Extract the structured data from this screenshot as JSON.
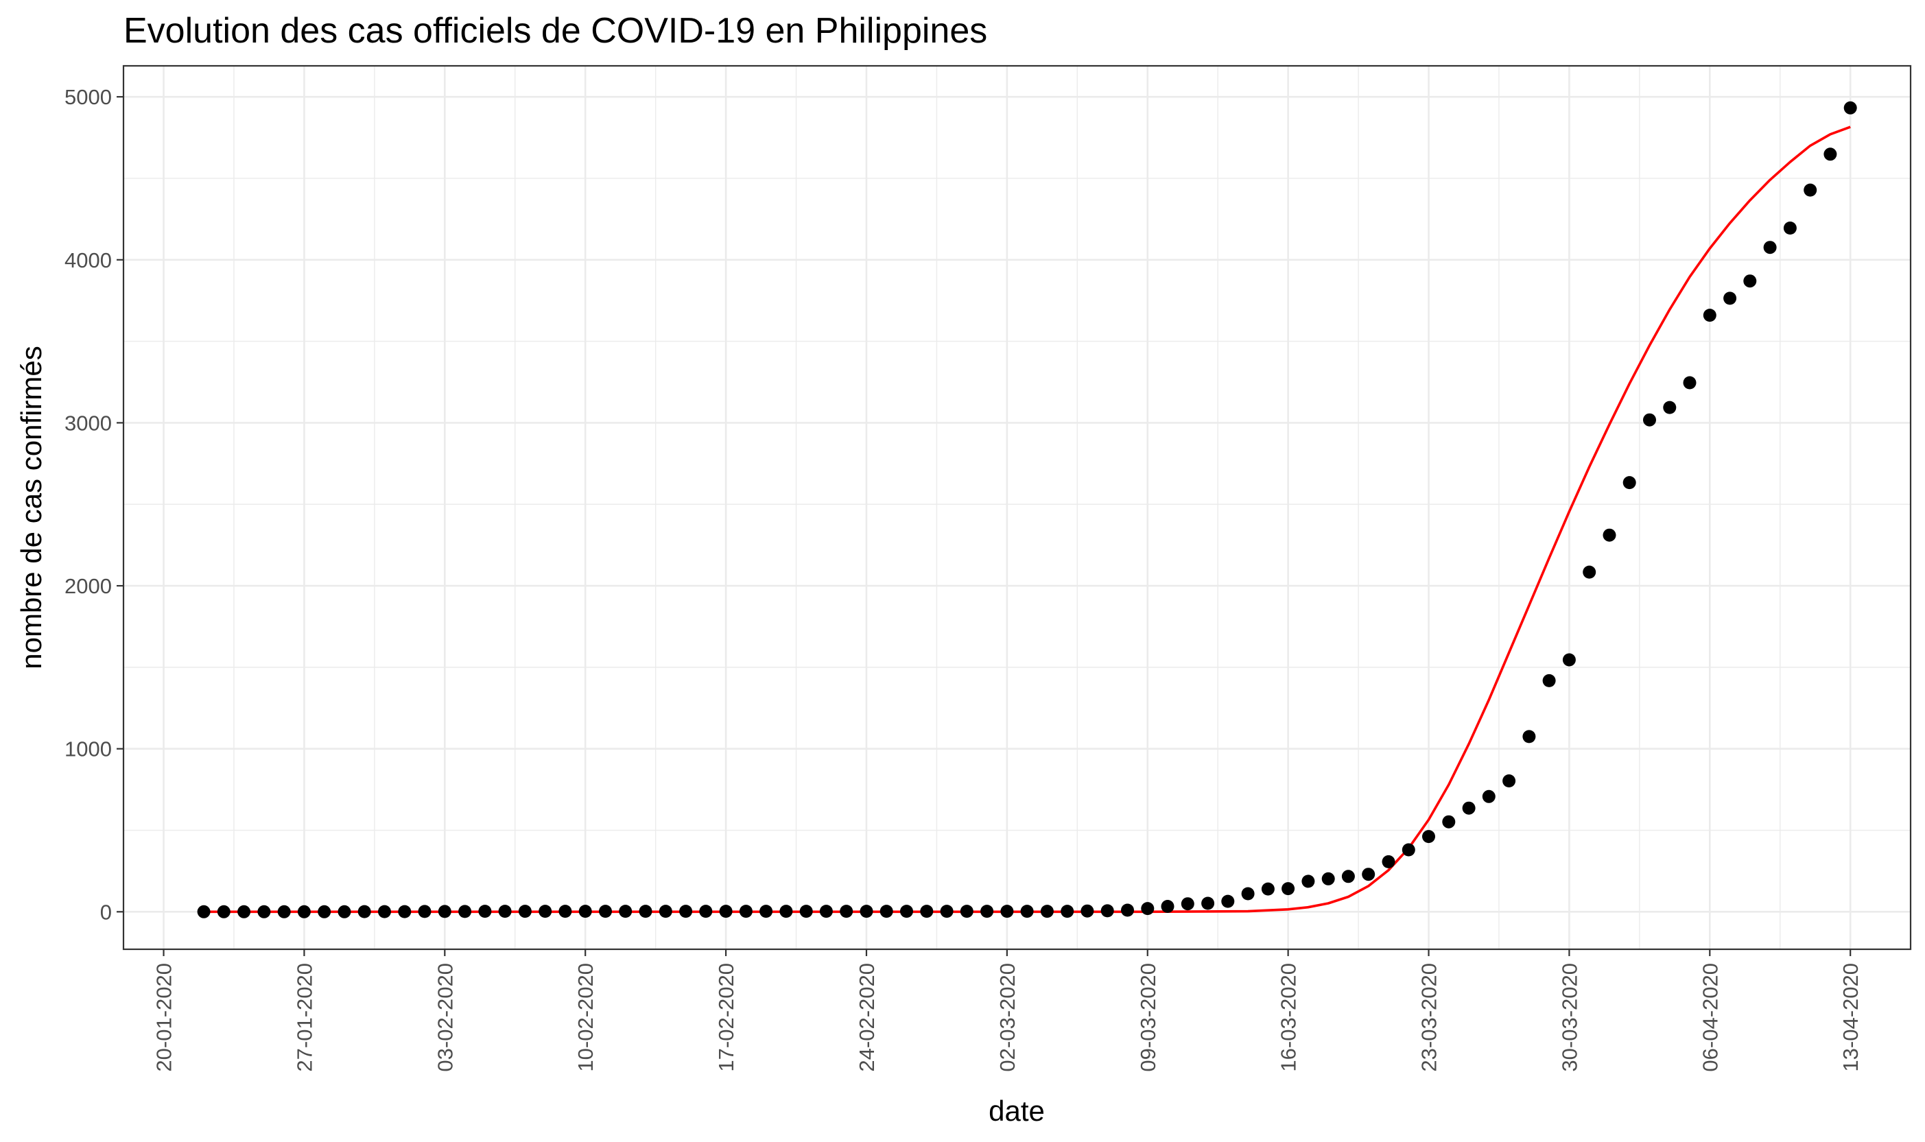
{
  "chart_data": {
    "type": "scatter",
    "title": "Evolution des cas officiels de COVID-19 en Philippines",
    "xlabel": "date",
    "ylabel": "nombre de cas confirmés",
    "x_range": [
      "2020-01-18",
      "2020-04-16"
    ],
    "ylim": [
      -230,
      5190
    ],
    "x_ticks": [
      {
        "date": "2020-01-20",
        "label": "20-01-2020"
      },
      {
        "date": "2020-01-27",
        "label": "27-01-2020"
      },
      {
        "date": "2020-02-03",
        "label": "03-02-2020"
      },
      {
        "date": "2020-02-10",
        "label": "10-02-2020"
      },
      {
        "date": "2020-02-17",
        "label": "17-02-2020"
      },
      {
        "date": "2020-02-24",
        "label": "24-02-2020"
      },
      {
        "date": "2020-03-02",
        "label": "02-03-2020"
      },
      {
        "date": "2020-03-09",
        "label": "09-03-2020"
      },
      {
        "date": "2020-03-16",
        "label": "16-03-2020"
      },
      {
        "date": "2020-03-23",
        "label": "23-03-2020"
      },
      {
        "date": "2020-03-30",
        "label": "30-03-2020"
      },
      {
        "date": "2020-04-06",
        "label": "06-04-2020"
      },
      {
        "date": "2020-04-13",
        "label": "13-04-2020"
      }
    ],
    "y_ticks": [
      0,
      1000,
      2000,
      3000,
      4000,
      5000
    ],
    "grid": true,
    "series": [
      {
        "kind": "points",
        "color": "#000000",
        "points": [
          [
            "2020-01-22",
            0
          ],
          [
            "2020-01-23",
            0
          ],
          [
            "2020-01-24",
            0
          ],
          [
            "2020-01-25",
            0
          ],
          [
            "2020-01-26",
            0
          ],
          [
            "2020-01-27",
            0
          ],
          [
            "2020-01-28",
            0
          ],
          [
            "2020-01-29",
            0
          ],
          [
            "2020-01-30",
            1
          ],
          [
            "2020-01-31",
            1
          ],
          [
            "2020-02-01",
            1
          ],
          [
            "2020-02-02",
            2
          ],
          [
            "2020-02-03",
            2
          ],
          [
            "2020-02-04",
            2
          ],
          [
            "2020-02-05",
            3
          ],
          [
            "2020-02-06",
            3
          ],
          [
            "2020-02-07",
            3
          ],
          [
            "2020-02-08",
            3
          ],
          [
            "2020-02-09",
            3
          ],
          [
            "2020-02-10",
            3
          ],
          [
            "2020-02-11",
            3
          ],
          [
            "2020-02-12",
            3
          ],
          [
            "2020-02-13",
            3
          ],
          [
            "2020-02-14",
            3
          ],
          [
            "2020-02-15",
            3
          ],
          [
            "2020-02-16",
            3
          ],
          [
            "2020-02-17",
            3
          ],
          [
            "2020-02-18",
            3
          ],
          [
            "2020-02-19",
            3
          ],
          [
            "2020-02-20",
            3
          ],
          [
            "2020-02-21",
            3
          ],
          [
            "2020-02-22",
            3
          ],
          [
            "2020-02-23",
            3
          ],
          [
            "2020-02-24",
            3
          ],
          [
            "2020-02-25",
            3
          ],
          [
            "2020-02-26",
            3
          ],
          [
            "2020-02-27",
            3
          ],
          [
            "2020-02-28",
            3
          ],
          [
            "2020-02-29",
            3
          ],
          [
            "2020-03-01",
            3
          ],
          [
            "2020-03-02",
            3
          ],
          [
            "2020-03-03",
            3
          ],
          [
            "2020-03-04",
            3
          ],
          [
            "2020-03-05",
            3
          ],
          [
            "2020-03-06",
            5
          ],
          [
            "2020-03-07",
            6
          ],
          [
            "2020-03-08",
            10
          ],
          [
            "2020-03-09",
            20
          ],
          [
            "2020-03-10",
            33
          ],
          [
            "2020-03-11",
            49
          ],
          [
            "2020-03-12",
            52
          ],
          [
            "2020-03-13",
            64
          ],
          [
            "2020-03-14",
            111
          ],
          [
            "2020-03-15",
            140
          ],
          [
            "2020-03-16",
            142
          ],
          [
            "2020-03-17",
            187
          ],
          [
            "2020-03-18",
            202
          ],
          [
            "2020-03-19",
            217
          ],
          [
            "2020-03-20",
            230
          ],
          [
            "2020-03-21",
            307
          ],
          [
            "2020-03-22",
            380
          ],
          [
            "2020-03-23",
            462
          ],
          [
            "2020-03-24",
            552
          ],
          [
            "2020-03-25",
            636
          ],
          [
            "2020-03-26",
            707
          ],
          [
            "2020-03-27",
            803
          ],
          [
            "2020-03-28",
            1075
          ],
          [
            "2020-03-29",
            1418
          ],
          [
            "2020-03-30",
            1546
          ],
          [
            "2020-03-31",
            2084
          ],
          [
            "2020-04-01",
            2311
          ],
          [
            "2020-04-02",
            2633
          ],
          [
            "2020-04-03",
            3018
          ],
          [
            "2020-04-04",
            3094
          ],
          [
            "2020-04-05",
            3246
          ],
          [
            "2020-04-06",
            3660
          ],
          [
            "2020-04-07",
            3764
          ],
          [
            "2020-04-08",
            3870
          ],
          [
            "2020-04-09",
            4076
          ],
          [
            "2020-04-10",
            4195
          ],
          [
            "2020-04-11",
            4428
          ],
          [
            "2020-04-12",
            4648
          ],
          [
            "2020-04-13",
            4932
          ]
        ]
      },
      {
        "kind": "fitted-curve",
        "color": "#ff0000",
        "points": [
          [
            "2020-01-22",
            0
          ],
          [
            "2020-03-09",
            0
          ],
          [
            "2020-03-14",
            3
          ],
          [
            "2020-03-16",
            15
          ],
          [
            "2020-03-17",
            28
          ],
          [
            "2020-03-18",
            52
          ],
          [
            "2020-03-19",
            92
          ],
          [
            "2020-03-20",
            158
          ],
          [
            "2020-03-21",
            255
          ],
          [
            "2020-03-22",
            390
          ],
          [
            "2020-03-23",
            565
          ],
          [
            "2020-03-24",
            780
          ],
          [
            "2020-03-25",
            1030
          ],
          [
            "2020-03-26",
            1300
          ],
          [
            "2020-03-27",
            1590
          ],
          [
            "2020-03-28",
            1880
          ],
          [
            "2020-03-29",
            2170
          ],
          [
            "2020-03-30",
            2455
          ],
          [
            "2020-03-31",
            2730
          ],
          [
            "2020-04-01",
            2990
          ],
          [
            "2020-04-02",
            3240
          ],
          [
            "2020-04-03",
            3475
          ],
          [
            "2020-04-04",
            3695
          ],
          [
            "2020-04-05",
            3895
          ],
          [
            "2020-04-06",
            4070
          ],
          [
            "2020-04-07",
            4225
          ],
          [
            "2020-04-08",
            4365
          ],
          [
            "2020-04-09",
            4490
          ],
          [
            "2020-04-10",
            4600
          ],
          [
            "2020-04-11",
            4700
          ],
          [
            "2020-04-12",
            4770
          ],
          [
            "2020-04-13",
            4815
          ]
        ]
      }
    ]
  }
}
